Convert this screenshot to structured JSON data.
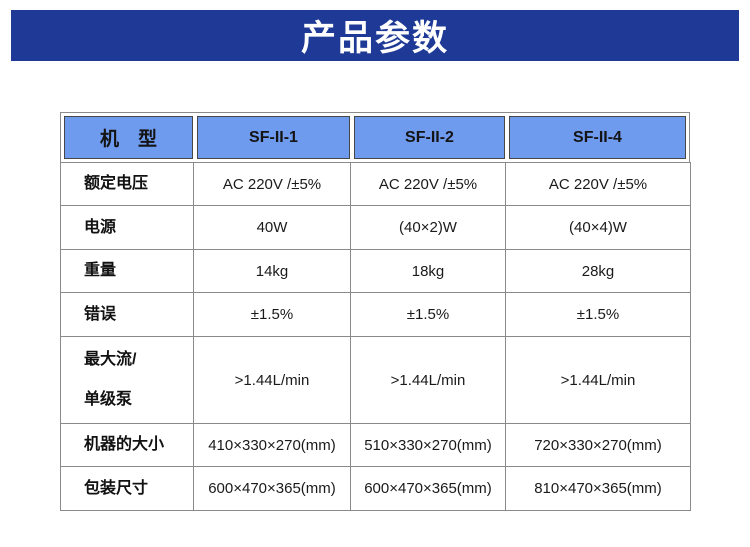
{
  "banner": {
    "title": "产品参数"
  },
  "colors": {
    "banner_bg": "#1E3A96",
    "header_cell_bg": "#6F9BEF",
    "header_cell_border": "#474747",
    "grid_border": "#8a8a8a",
    "text": "#1a1a1a"
  },
  "table": {
    "header": {
      "model_label": "机　型",
      "models": [
        "SF-II-1",
        "SF-II-2",
        "SF-II-4"
      ]
    },
    "rows": [
      {
        "label": "额定电压",
        "values": [
          "AC 220V /±5%",
          "AC 220V /±5%",
          "AC 220V /±5%"
        ]
      },
      {
        "label": "电源",
        "values": [
          "40W",
          "(40×2)W",
          "(40×4)W"
        ]
      },
      {
        "label": "重量",
        "values": [
          "14kg",
          "18kg",
          "28kg"
        ]
      },
      {
        "label": "错误",
        "values": [
          "±1.5%",
          "±1.5%",
          "±1.5%"
        ]
      },
      {
        "label": "最大流/\n单级泵",
        "values": [
          ">1.44L/min",
          ">1.44L/min",
          ">1.44L/min"
        ]
      },
      {
        "label": "机器的大小",
        "values": [
          "410×330×270(mm)",
          "510×330×270(mm)",
          "720×330×270(mm)"
        ]
      },
      {
        "label": "包装尺寸",
        "values": [
          "600×470×365(mm)",
          "600×470×365(mm)",
          "810×470×365(mm)"
        ]
      }
    ]
  }
}
